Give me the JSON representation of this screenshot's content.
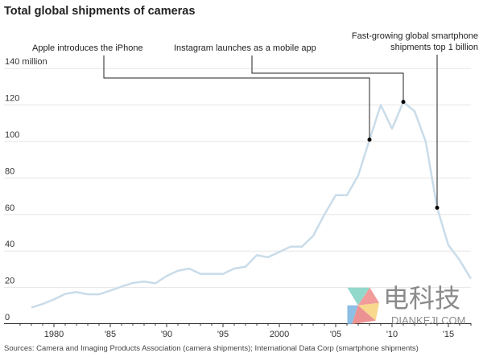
{
  "chart_data": {
    "type": "line",
    "title": "Total global shipments of cameras",
    "ylabel": "",
    "xlabel": "",
    "y_unit_label": "140 million",
    "ylim": [
      0,
      140
    ],
    "xlim": [
      1977,
      2018
    ],
    "grid": true,
    "y_ticks": [
      0,
      20,
      40,
      60,
      80,
      100,
      120,
      140
    ],
    "y_tick_labels": [
      "0",
      "20",
      "40",
      "60",
      "80",
      "100",
      "120",
      "140 million"
    ],
    "x_ticks": [
      1980,
      1985,
      1990,
      1995,
      2000,
      2005,
      2010,
      2015
    ],
    "x_tick_labels": [
      "1980",
      "'85",
      "'90",
      "'95",
      "2000",
      "'05",
      "'10",
      "'15"
    ],
    "line_color": "#c9dcea",
    "x": [
      1978,
      1979,
      1980,
      1981,
      1982,
      1983,
      1984,
      1985,
      1986,
      1987,
      1988,
      1989,
      1990,
      1991,
      1992,
      1993,
      1994,
      1995,
      1996,
      1997,
      1998,
      1999,
      2000,
      2001,
      2002,
      2003,
      2004,
      2005,
      2006,
      2007,
      2008,
      2009,
      2010,
      2011,
      2012,
      2013,
      2014,
      2015,
      2016,
      2017
    ],
    "values": [
      9,
      11,
      13.5,
      16.5,
      17.5,
      16.3,
      16.3,
      18.3,
      20.5,
      22.5,
      23.3,
      22.3,
      26.3,
      29.2,
      30.4,
      27.5,
      27.5,
      27.5,
      30.4,
      31.4,
      37.7,
      36.6,
      39.5,
      42.4,
      42.4,
      48.3,
      60,
      70.6,
      70.6,
      81.4,
      101,
      120,
      107,
      121.7,
      116.6,
      99.7,
      63.7,
      43.2,
      35,
      24.8
    ],
    "annotations": [
      {
        "text": "Apple introduces the iPhone",
        "x": 2008,
        "y": 101
      },
      {
        "text": "Instagram launches as a mobile app",
        "x": 2011,
        "y": 121.7
      },
      {
        "text_lines": [
          "Fast-growing global smartphone",
          "shipments top 1 billion"
        ],
        "x": 2014,
        "y": 63.7
      }
    ]
  },
  "source": "Sources: Camera and Imaging Products Association (camera shipments); International Data Corp (smartphone shipments)",
  "watermark": {
    "cn": "电科技",
    "en": "DIANKEJI.COM"
  }
}
